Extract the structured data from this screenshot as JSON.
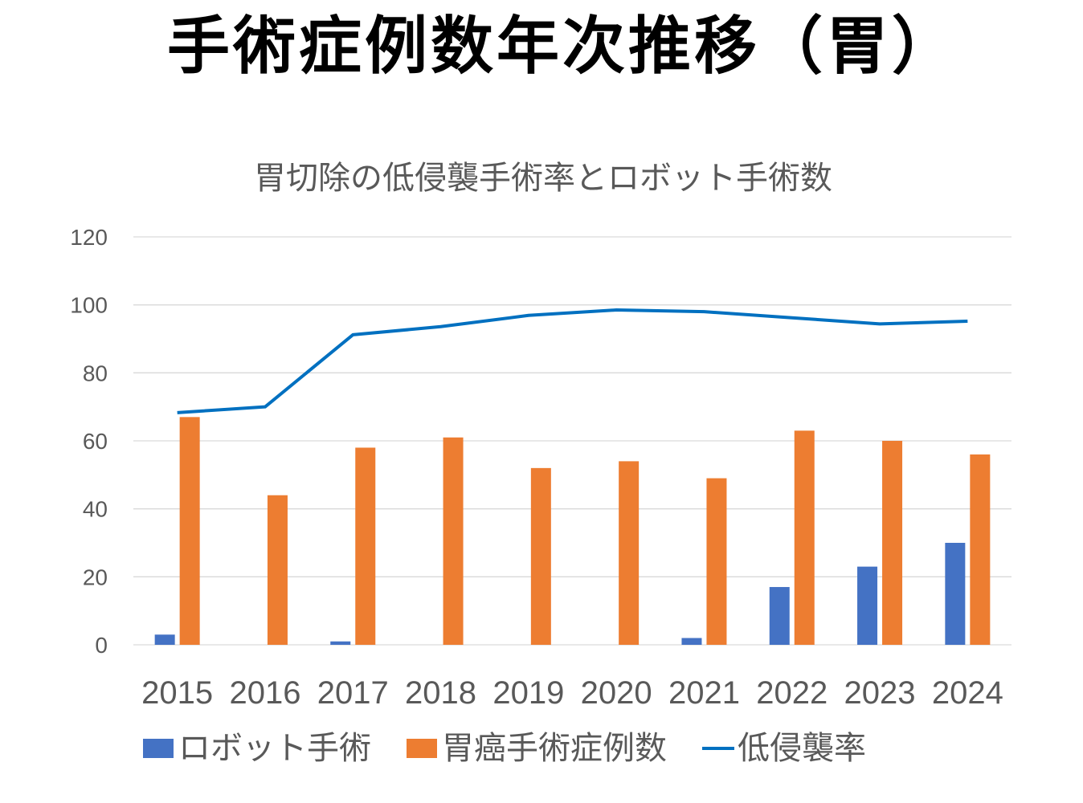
{
  "page": {
    "title": "手術症例数年次推移（胃）"
  },
  "colors": {
    "robot": "#4472C4",
    "cases": "#ED7D31",
    "rate": "#0070C0",
    "grid": "#D9D9D9",
    "text": "#595959"
  },
  "legend": {
    "items": [
      {
        "label": "ロボット手術",
        "type": "bar",
        "color": "#4472C4"
      },
      {
        "label": "胃癌手術症例数",
        "type": "bar",
        "color": "#ED7D31"
      },
      {
        "label": "低侵襲率",
        "type": "line",
        "color": "#0070C0"
      }
    ]
  },
  "chart_data": {
    "type": "bar",
    "title": "胃切除の低侵襲手術率とロボット手術数",
    "xlabel": "",
    "ylabel": "",
    "ylim": [
      0,
      120
    ],
    "yticks": [
      0,
      20,
      40,
      60,
      80,
      100,
      120
    ],
    "grid": true,
    "legend_position": "bottom",
    "categories": [
      "2015",
      "2016",
      "2017",
      "2018",
      "2019",
      "2020",
      "2021",
      "2022",
      "2023",
      "2024"
    ],
    "series": [
      {
        "name": "ロボット手術",
        "type": "bar",
        "color": "#4472C4",
        "values": [
          3,
          0,
          1,
          0,
          0,
          0,
          2,
          17,
          23,
          30
        ]
      },
      {
        "name": "胃癌手術症例数",
        "type": "bar",
        "color": "#ED7D31",
        "values": [
          67,
          44,
          58,
          61,
          52,
          54,
          49,
          63,
          60,
          56
        ]
      },
      {
        "name": "低侵襲率",
        "type": "line",
        "color": "#0070C0",
        "values": [
          68.3,
          70,
          91.2,
          93.6,
          96.9,
          98.5,
          98,
          96.2,
          94.4,
          95.2
        ]
      }
    ]
  }
}
